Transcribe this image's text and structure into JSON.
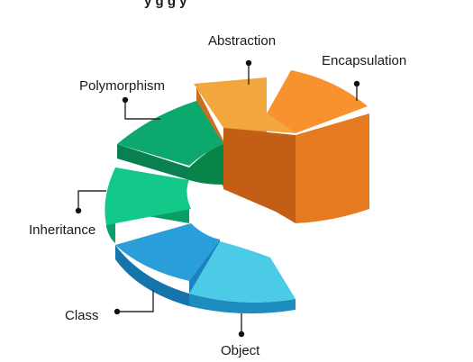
{
  "header_fragment": "y                      g      g   y",
  "segments": [
    {
      "key": "abstraction",
      "label": "Abstraction",
      "color": "#F4A63E"
    },
    {
      "key": "encapsulation",
      "label": "Encapsulation",
      "color": "#F7922E"
    },
    {
      "key": "polymorphism",
      "label": "Polymorphism",
      "color": "#0CA86E"
    },
    {
      "key": "inheritance",
      "label": "Inheritance",
      "color": "#12C98A"
    },
    {
      "key": "class",
      "label": "Class",
      "color": "#2A9ED8"
    },
    {
      "key": "object",
      "label": "Object",
      "color": "#4BCBE6"
    }
  ]
}
